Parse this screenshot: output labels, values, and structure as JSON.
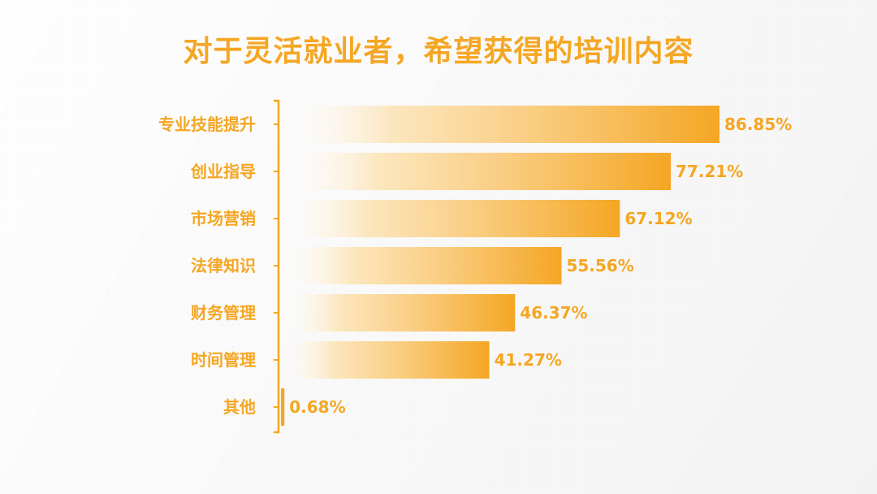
{
  "colors": {
    "accent": "#f5a623",
    "bar_light": "#ffffff"
  },
  "chart_data": {
    "type": "bar",
    "orientation": "horizontal",
    "title": "对于灵活就业者，希望获得的培训内容",
    "categories": [
      "专业技能提升",
      "创业指导",
      "市场营销",
      "法律知识",
      "财务管理",
      "时间管理",
      "其他"
    ],
    "values": [
      86.85,
      77.21,
      67.12,
      55.56,
      46.37,
      41.27,
      0.68
    ],
    "value_labels": [
      "86.85%",
      "77.21%",
      "67.12%",
      "55.56%",
      "46.37%",
      "41.27%",
      "0.68%"
    ],
    "xlim": [
      0,
      100
    ],
    "grid": false,
    "legend": "none"
  }
}
